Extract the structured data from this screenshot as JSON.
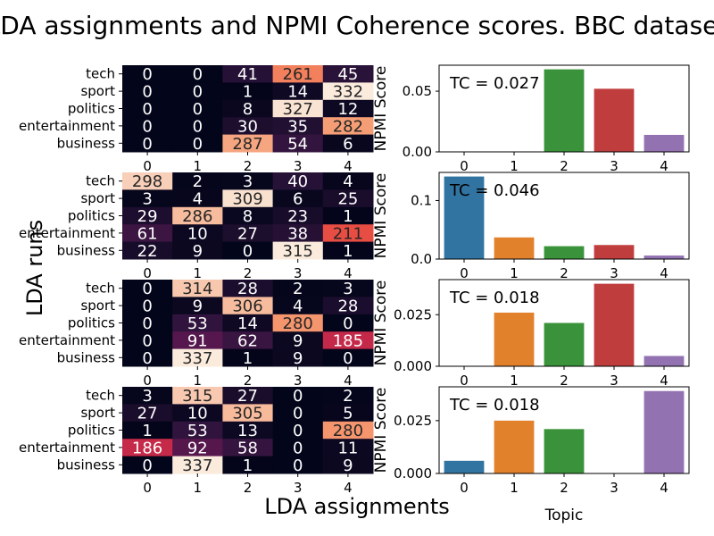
{
  "figure": {
    "title": "LDA assignments and NPMI Coherence scores. BBC dataset",
    "ylabel": "LDA runs",
    "xlabel": "LDA assignments"
  },
  "chart_data": [
    {
      "type": "heatmap",
      "name": "run-1",
      "xcategories": [
        "0",
        "1",
        "2",
        "3",
        "4"
      ],
      "ycategories": [
        "tech",
        "sport",
        "politics",
        "entertainment",
        "business"
      ],
      "values": [
        [
          0,
          0,
          41,
          261,
          45
        ],
        [
          0,
          0,
          1,
          14,
          332
        ],
        [
          0,
          0,
          8,
          327,
          12
        ],
        [
          0,
          0,
          30,
          35,
          282
        ],
        [
          0,
          0,
          287,
          54,
          6
        ]
      ],
      "vmax": 332
    },
    {
      "type": "heatmap",
      "name": "run-2",
      "xcategories": [
        "0",
        "1",
        "2",
        "3",
        "4"
      ],
      "ycategories": [
        "tech",
        "sport",
        "politics",
        "entertainment",
        "business"
      ],
      "values": [
        [
          298,
          2,
          3,
          40,
          4
        ],
        [
          3,
          4,
          309,
          6,
          25
        ],
        [
          29,
          286,
          8,
          23,
          1
        ],
        [
          61,
          10,
          27,
          38,
          211
        ],
        [
          22,
          9,
          0,
          315,
          1
        ]
      ],
      "vmax": 315
    },
    {
      "type": "heatmap",
      "name": "run-3",
      "xcategories": [
        "0",
        "1",
        "2",
        "3",
        "4"
      ],
      "ycategories": [
        "tech",
        "sport",
        "politics",
        "entertainment",
        "business"
      ],
      "values": [
        [
          0,
          314,
          28,
          2,
          3
        ],
        [
          0,
          9,
          306,
          4,
          28
        ],
        [
          0,
          53,
          14,
          280,
          0
        ],
        [
          0,
          91,
          62,
          9,
          185
        ],
        [
          0,
          337,
          1,
          9,
          0
        ]
      ],
      "vmax": 337
    },
    {
      "type": "heatmap",
      "name": "run-4",
      "xcategories": [
        "0",
        "1",
        "2",
        "3",
        "4"
      ],
      "ycategories": [
        "tech",
        "sport",
        "politics",
        "entertainment",
        "business"
      ],
      "values": [
        [
          3,
          315,
          27,
          0,
          2
        ],
        [
          27,
          10,
          305,
          0,
          5
        ],
        [
          1,
          53,
          13,
          0,
          280
        ],
        [
          186,
          92,
          58,
          0,
          11
        ],
        [
          0,
          337,
          1,
          0,
          9
        ]
      ],
      "vmax": 337
    },
    {
      "type": "bar",
      "name": "npmi-1",
      "categories": [
        "0",
        "1",
        "2",
        "3",
        "4"
      ],
      "values": [
        0,
        0,
        0.068,
        0.052,
        0.014
      ],
      "ylabel": "NPMI Score",
      "annotation": "TC = 0.027",
      "ylim": [
        0,
        0.0714
      ],
      "yticks": [
        0.0,
        0.05
      ],
      "yticklabels": [
        "0.00",
        "0.05"
      ]
    },
    {
      "type": "bar",
      "name": "npmi-2",
      "categories": [
        "0",
        "1",
        "2",
        "3",
        "4"
      ],
      "values": [
        0.141,
        0.037,
        0.022,
        0.024,
        0.006
      ],
      "ylabel": "NPMI Score",
      "annotation": "TC = 0.046",
      "ylim": [
        0,
        0.148
      ],
      "yticks": [
        0.0,
        0.1
      ],
      "yticklabels": [
        "0.0",
        "0.1"
      ]
    },
    {
      "type": "bar",
      "name": "npmi-3",
      "categories": [
        "0",
        "1",
        "2",
        "3",
        "4"
      ],
      "values": [
        0,
        0.026,
        0.021,
        0.04,
        0.005
      ],
      "ylabel": "NPMI Score",
      "annotation": "TC = 0.018",
      "ylim": [
        0,
        0.042
      ],
      "yticks": [
        0.0,
        0.025
      ],
      "yticklabels": [
        "0.000",
        "0.025"
      ]
    },
    {
      "type": "bar",
      "name": "npmi-4",
      "categories": [
        "0",
        "1",
        "2",
        "3",
        "4"
      ],
      "values": [
        0.006,
        0.025,
        0.021,
        0,
        0.039
      ],
      "ylabel": "NPMI Score",
      "annotation": "TC = 0.018",
      "xlabel": "Topic",
      "ylim": [
        0,
        0.041
      ],
      "yticks": [
        0.0,
        0.025
      ],
      "yticklabels": [
        "0.000",
        "0.025"
      ]
    }
  ],
  "colors": {
    "bar_palette": [
      "#3274a1",
      "#e1812c",
      "#3a923a",
      "#c03d3e",
      "#9372b2"
    ],
    "heatmap": "rocket"
  }
}
